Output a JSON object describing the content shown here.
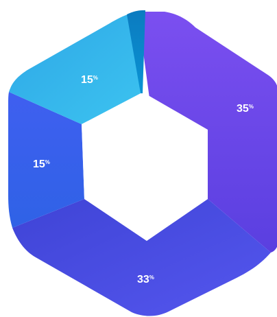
{
  "chart_data": {
    "type": "pie",
    "variant": "hexagonal-donut",
    "segments": [
      {
        "value": 35,
        "label": "35",
        "unit": "%",
        "color": "#6a47e6"
      },
      {
        "value": 33,
        "label": "33",
        "unit": "%",
        "color": "#4b4ee8"
      },
      {
        "value": 15,
        "label": "15",
        "unit": "%",
        "color": "#3c6cf0"
      },
      {
        "value": 15,
        "label": "15",
        "unit": "%",
        "color": "#33b3ea"
      },
      {
        "value": 2,
        "label": "",
        "unit": "",
        "color": "#0a86c8"
      }
    ]
  }
}
